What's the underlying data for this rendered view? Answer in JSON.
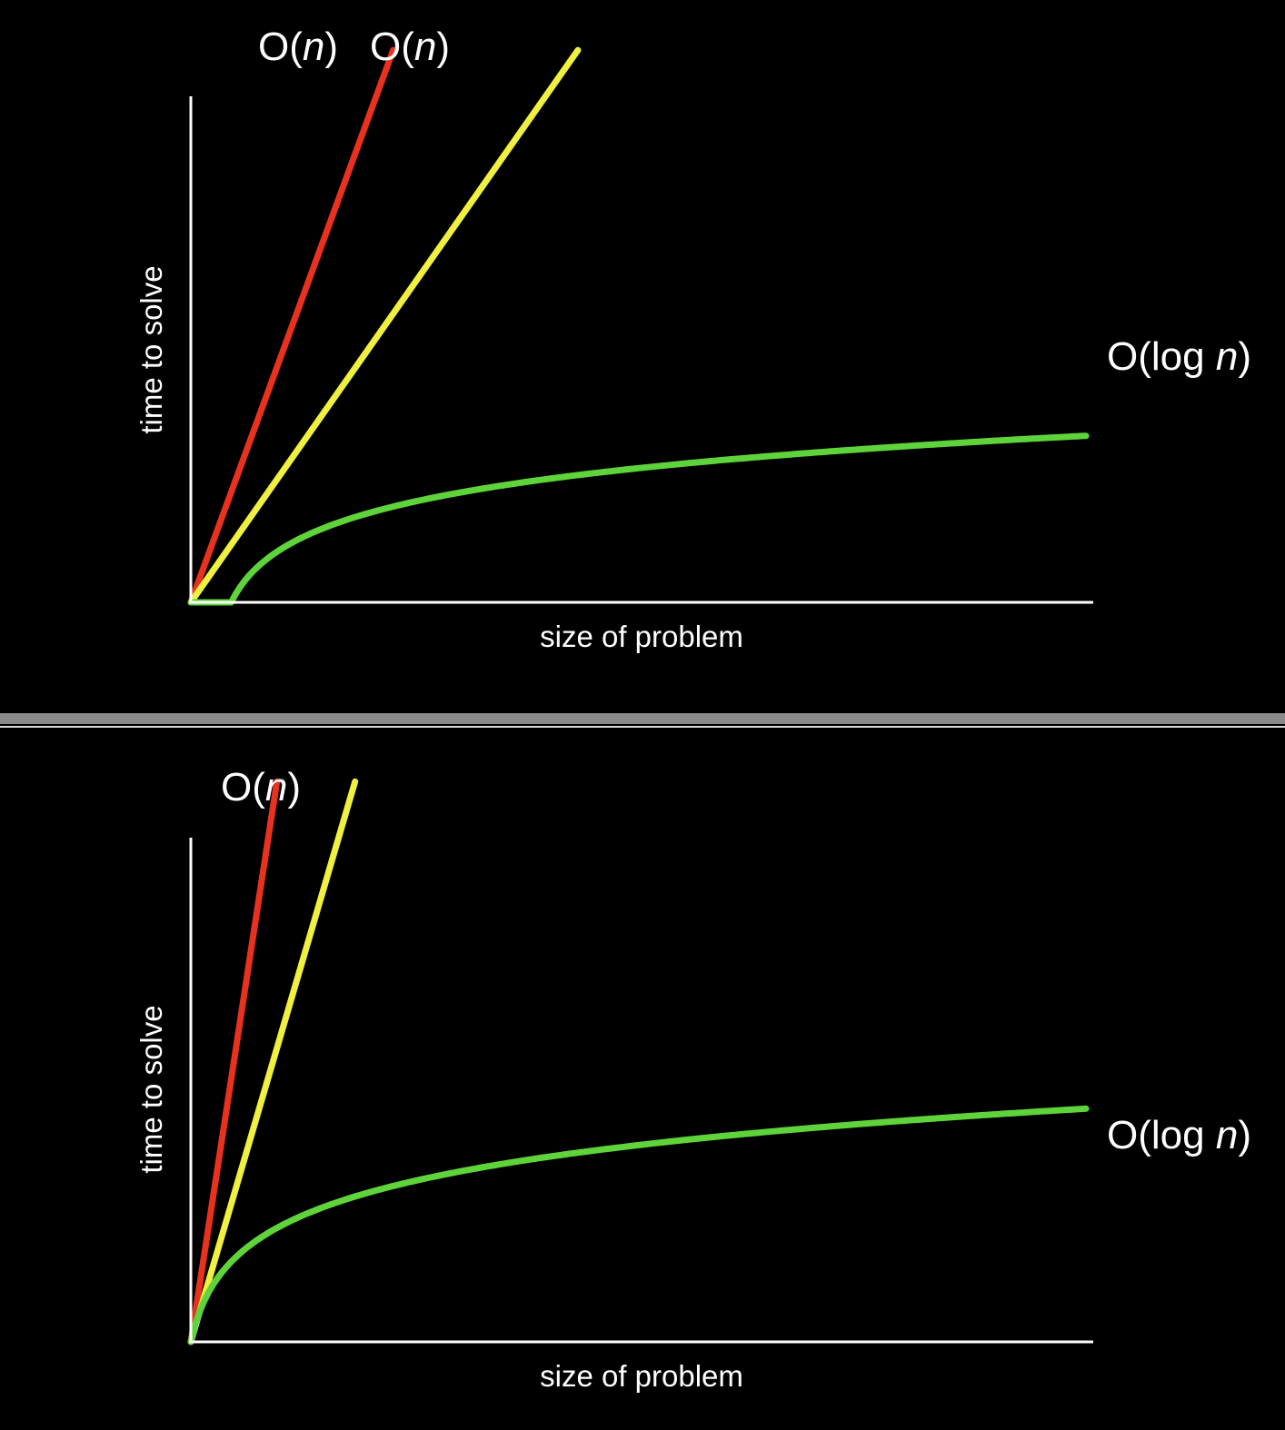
{
  "colors": {
    "background": "#000000",
    "axis": "#ffffff",
    "divider": "#8a8a8a"
  },
  "chart_data": [
    {
      "type": "line",
      "title": "",
      "xlabel": "size of problem",
      "ylabel": "time to solve",
      "grid": false,
      "series": [
        {
          "name": "O(n)",
          "label_parts": [
            "O(",
            "n",
            ")"
          ],
          "color": "#e8321e",
          "function": "linear",
          "slope": 4.4
        },
        {
          "name": "O(n)",
          "label_parts": [
            "O(",
            "n",
            ")"
          ],
          "color": "#f0f040",
          "function": "linear",
          "slope": 2.3
        },
        {
          "name": "O(log n)",
          "label_parts": [
            "O(log ",
            "n",
            ")"
          ],
          "color": "#5fd43a",
          "function": "log",
          "x_offset": 0.045,
          "scale": 0.3,
          "x_scale": 0.025
        }
      ]
    },
    {
      "type": "line",
      "title": "",
      "xlabel": "size of problem",
      "ylabel": "time to solve",
      "grid": false,
      "series": [
        {
          "name": "O(n)",
          "label_parts": [
            "O(",
            "n",
            ")"
          ],
          "color": "#e8321e",
          "function": "linear",
          "slope": 10.5
        },
        {
          "name": "",
          "label_parts": [],
          "color": "#f0f040",
          "function": "linear",
          "slope": 5.5
        },
        {
          "name": "O(log n)",
          "label_parts": [
            "O(log ",
            "n",
            ")"
          ],
          "color": "#5fd43a",
          "function": "log",
          "x_offset": 0.0,
          "scale": 0.42,
          "x_scale": 0.013
        }
      ]
    }
  ]
}
